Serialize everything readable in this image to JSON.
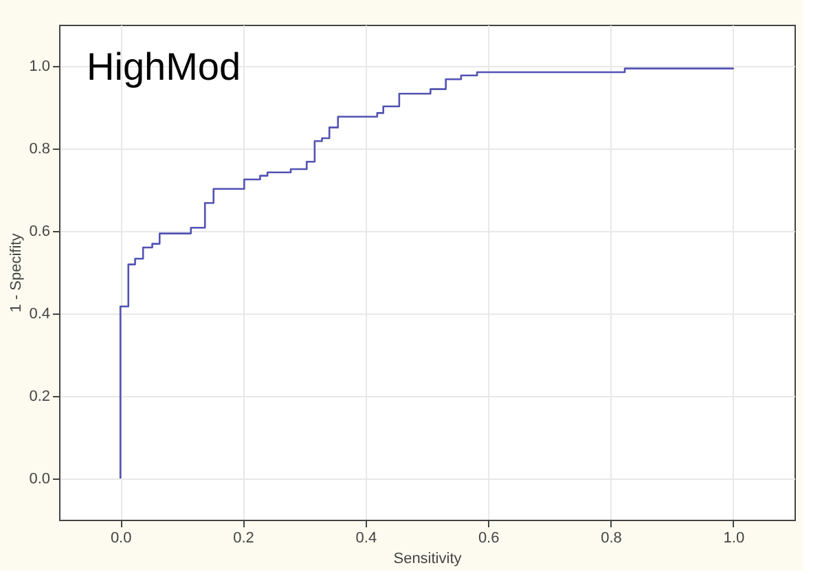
{
  "chart_data": {
    "type": "step",
    "xlabel": "Sensitivity",
    "ylabel": "1 - Specifity",
    "annotations": [
      "HighMod"
    ],
    "xlim": [
      -0.1,
      1.1
    ],
    "ylim": [
      -0.1,
      1.1
    ],
    "xticks": [
      {
        "value": 0,
        "label": "0.0"
      },
      0.2,
      0.4,
      0.6,
      0.8,
      {
        "value": 1,
        "label": "1.0"
      }
    ],
    "yticks": [
      {
        "value": 0,
        "label": "0.0"
      },
      0.2,
      0.4,
      0.6,
      0.8,
      {
        "value": 1,
        "label": "1.0"
      }
    ],
    "grid": true,
    "series": [
      {
        "color": "#5252b4",
        "x": [
          0.0,
          0.0,
          0.013,
          0.024,
          0.037,
          0.052,
          0.064,
          0.115,
          0.138,
          0.152,
          0.202,
          0.228,
          0.24,
          0.278,
          0.304,
          0.317,
          0.329,
          0.341,
          0.355,
          0.419,
          0.429,
          0.455,
          0.506,
          0.531,
          0.556,
          0.582,
          0.823,
          1.0
        ],
        "values": [
          0.0,
          0.417,
          0.519,
          0.533,
          0.56,
          0.569,
          0.594,
          0.608,
          0.668,
          0.702,
          0.725,
          0.734,
          0.742,
          0.75,
          0.768,
          0.818,
          0.825,
          0.851,
          0.877,
          0.886,
          0.902,
          0.933,
          0.944,
          0.968,
          0.977,
          0.985,
          0.994,
          0.996
        ]
      }
    ]
  }
}
